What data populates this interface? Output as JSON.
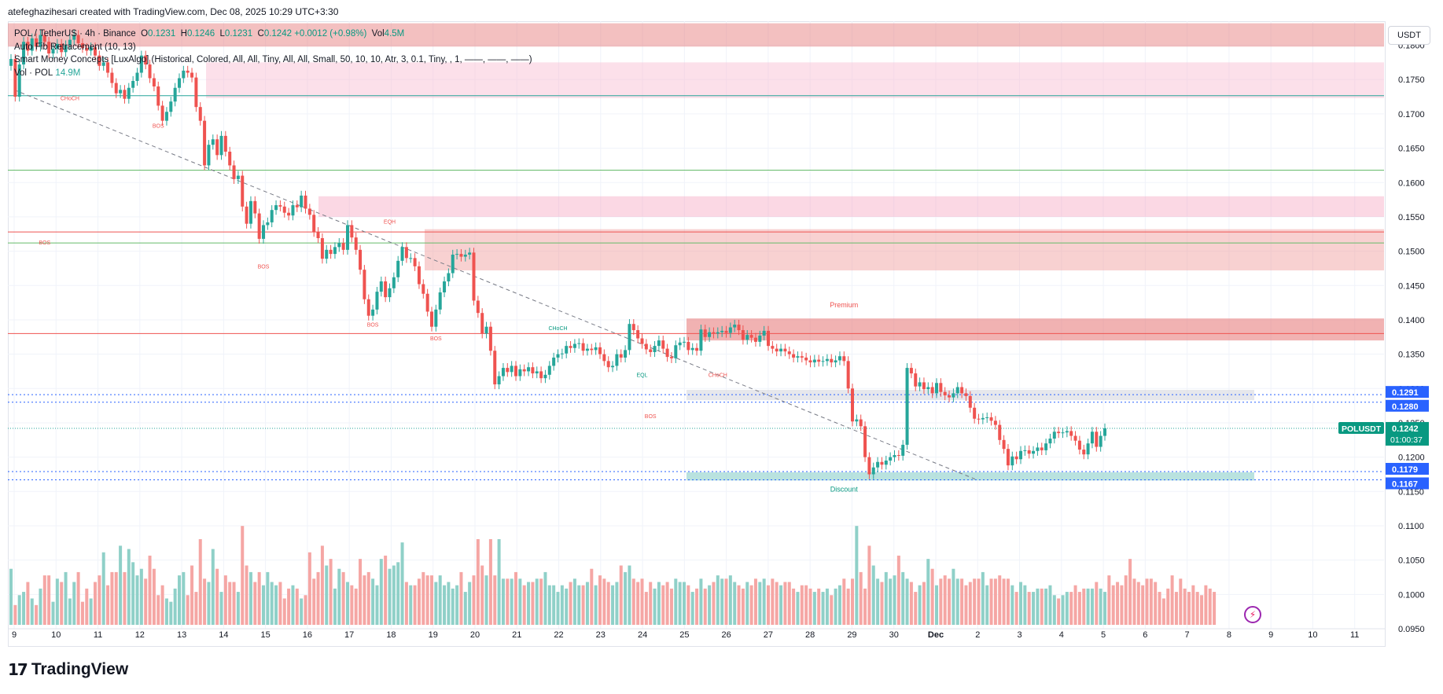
{
  "header": {
    "caption": "atefeghazihesari created with TradingView.com, Dec 08, 2025 10:29 UTC+3:30"
  },
  "legend": {
    "symbol": "POL / TetherUS · 4h · Binance",
    "o_label": "O",
    "o_value": "0.1231",
    "h_label": "H",
    "h_value": "0.1246",
    "l_label": "L",
    "l_value": "0.1231",
    "c_label": "C",
    "c_value": "0.1242",
    "change": "+0.0012 (+0.98%)",
    "vol_label": "Vol",
    "vol_value": "4.5M",
    "indicator_fib": "Auto Fib Retracement (10, 13)",
    "indicator_smc": "Smart Money Concepts [LuxAlgo] (Historical, Colored, All, All, Tiny, All, All, Small, 50, 10, 10, Atr, 3, 0.1, Tiny, , 1, ——, ——, ——)",
    "vol_row_label": "Vol · POL",
    "vol_row_value": "14.9M"
  },
  "currency_button": "USDT",
  "branding": {
    "logo_mark": "17",
    "logo_text": "TradingView"
  },
  "colors": {
    "up": "#26a69a",
    "down": "#ef5350",
    "up_vol": "#8fd0c8",
    "down_vol": "#f5a6a4",
    "premium_zone": "#f7c1c4",
    "discount_zone": "#b2dfdb",
    "blue_line": "#2962ff",
    "badge": "#089981"
  },
  "chart_data": {
    "type": "candlestick",
    "symbol": "POLUSDT",
    "timeframe": "4h",
    "ylim": [
      0.095,
      0.1835
    ],
    "y_ticks": [
      "0.1800",
      "0.1750",
      "0.1700",
      "0.1650",
      "0.1600",
      "0.1550",
      "0.1500",
      "0.1450",
      "0.1400",
      "0.1350",
      "0.1300",
      "0.1250",
      "0.1200",
      "0.1150",
      "0.1100",
      "0.1050",
      "0.1000",
      "0.0950"
    ],
    "x_labels": [
      "9",
      "10",
      "11",
      "12",
      "13",
      "14",
      "15",
      "16",
      "17",
      "18",
      "19",
      "20",
      "21",
      "22",
      "23",
      "24",
      "25",
      "26",
      "27",
      "28",
      "29",
      "30",
      "Dec",
      "2",
      "3",
      "4",
      "5",
      "6",
      "7",
      "8",
      "9",
      "10",
      "11"
    ],
    "num_slots": 306,
    "closes": [
      0.178,
      0.1725,
      0.1772,
      0.1805,
      0.1792,
      0.181,
      0.1798,
      0.1815,
      0.1805,
      0.1788,
      0.1795,
      0.1802,
      0.179,
      0.18,
      0.1808,
      0.1815,
      0.1803,
      0.1796,
      0.1792,
      0.1797,
      0.1785,
      0.177,
      0.1775,
      0.176,
      0.1745,
      0.173,
      0.1735,
      0.1722,
      0.1738,
      0.1748,
      0.176,
      0.1785,
      0.1772,
      0.1752,
      0.174,
      0.1712,
      0.169,
      0.1703,
      0.1718,
      0.1738,
      0.1752,
      0.1763,
      0.176,
      0.1753,
      0.171,
      0.169,
      0.1625,
      0.1655,
      0.1663,
      0.164,
      0.1668,
      0.1645,
      0.1625,
      0.1605,
      0.161,
      0.1565,
      0.154,
      0.1573,
      0.1555,
      0.1518,
      0.1538,
      0.1542,
      0.156,
      0.1567,
      0.1565,
      0.1556,
      0.1552,
      0.1567,
      0.1564,
      0.1581,
      0.1562,
      0.1553,
      0.1528,
      0.1519,
      0.1489,
      0.1502,
      0.1496,
      0.1506,
      0.1512,
      0.1502,
      0.1538,
      0.152,
      0.1502,
      0.1473,
      0.143,
      0.1406,
      0.1415,
      0.1441,
      0.1456,
      0.1433,
      0.1446,
      0.1462,
      0.1486,
      0.1506,
      0.149,
      0.149,
      0.1478,
      0.1452,
      0.1438,
      0.1412,
      0.139,
      0.1415,
      0.144,
      0.1456,
      0.1468,
      0.1495,
      0.1496,
      0.1492,
      0.1495,
      0.1498,
      0.1428,
      0.141,
      0.138,
      0.139,
      0.1355,
      0.1306,
      0.1318,
      0.133,
      0.1324,
      0.1333,
      0.1318,
      0.1328,
      0.1325,
      0.1331,
      0.1322,
      0.1325,
      0.1315,
      0.132,
      0.1333,
      0.1345,
      0.135,
      0.1351,
      0.1362,
      0.1359,
      0.1365,
      0.1366,
      0.1355,
      0.1358,
      0.1356,
      0.136,
      0.135,
      0.134,
      0.1331,
      0.1333,
      0.135,
      0.1345,
      0.1356,
      0.1394,
      0.1385,
      0.1373,
      0.1365,
      0.1357,
      0.1353,
      0.1362,
      0.137,
      0.1358,
      0.1346,
      0.1344,
      0.1363,
      0.1367,
      0.1368,
      0.1356,
      0.1359,
      0.1355,
      0.1386,
      0.1375,
      0.1382,
      0.138,
      0.1382,
      0.1384,
      0.1381,
      0.1389,
      0.1393,
      0.1385,
      0.1371,
      0.1378,
      0.1374,
      0.1368,
      0.1377,
      0.1384,
      0.1362,
      0.1358,
      0.1354,
      0.1358,
      0.1354,
      0.135,
      0.1345,
      0.1347,
      0.1345,
      0.1341,
      0.1338,
      0.1342,
      0.1339,
      0.134,
      0.1343,
      0.1338,
      0.1341,
      0.1347,
      0.134,
      0.13,
      0.1252,
      0.1255,
      0.1245,
      0.12,
      0.1175,
      0.1185,
      0.1193,
      0.1189,
      0.1195,
      0.12,
      0.1203,
      0.1202,
      0.1218,
      0.133,
      0.1322,
      0.1303,
      0.1309,
      0.1299,
      0.1302,
      0.1293,
      0.1308,
      0.1295,
      0.129,
      0.1287,
      0.1293,
      0.1302,
      0.1293,
      0.1289,
      0.1272,
      0.1256,
      0.1255,
      0.1257,
      0.1258,
      0.1253,
      0.1247,
      0.1225,
      0.1212,
      0.1188,
      0.1201,
      0.1197,
      0.1209,
      0.121,
      0.1205,
      0.1209,
      0.1214,
      0.121,
      0.122,
      0.1227,
      0.1237,
      0.1235,
      0.1236,
      0.1238,
      0.1231,
      0.1224,
      0.1211,
      0.1204,
      0.122,
      0.1237,
      0.1215,
      0.1231,
      0.1242
    ],
    "volumes": [
      1.7,
      0.6,
      0.9,
      1.0,
      1.3,
      0.8,
      0.6,
      1.1,
      1.5,
      1.5,
      0.7,
      1.4,
      1.3,
      1.6,
      0.8,
      1.3,
      1.6,
      0.7,
      1.1,
      0.8,
      1.3,
      1.5,
      2.2,
      1.2,
      1.6,
      1.6,
      2.4,
      1.6,
      2.3,
      1.9,
      1.5,
      1.7,
      1.4,
      2.1,
      1.7,
      0.9,
      1.2,
      0.8,
      0.7,
      1.1,
      1.5,
      1.6,
      0.9,
      1.8,
      1.0,
      2.6,
      1.4,
      1.3,
      2.3,
      1.7,
      1.0,
      1.5,
      1.3,
      1.3,
      1.0,
      3.0,
      1.8,
      1.6,
      1.3,
      1.6,
      1.2,
      1.6,
      1.3,
      1.2,
      1.3,
      0.8,
      1.1,
      1.2,
      1.1,
      0.8,
      0.9,
      2.2,
      1.4,
      1.6,
      2.4,
      1.8,
      2.0,
      1.1,
      1.7,
      1.6,
      1.3,
      1.2,
      1.1,
      2.0,
      1.5,
      1.6,
      1.4,
      1.2,
      2.0,
      2.1,
      1.7,
      1.8,
      1.9,
      2.5,
      1.3,
      1.2,
      1.2,
      1.4,
      1.6,
      1.5,
      1.5,
      1.3,
      1.5,
      1.2,
      1.3,
      1.1,
      1.2,
      1.6,
      1.0,
      1.3,
      1.5,
      2.6,
      1.8,
      1.5,
      2.6,
      1.5,
      2.6,
      1.4,
      1.4,
      1.4,
      1.6,
      1.4,
      1.2,
      1.3,
      1.3,
      1.4,
      1.4,
      1.6,
      1.2,
      1.2,
      1.0,
      1.2,
      1.1,
      1.3,
      1.4,
      1.2,
      1.2,
      1.3,
      1.7,
      1.2,
      1.5,
      1.4,
      1.3,
      1.2,
      1.3,
      1.8,
      1.6,
      1.8,
      1.4,
      1.3,
      1.4,
      1.0,
      1.3,
      1.1,
      1.3,
      1.2,
      1.3,
      1.1,
      1.4,
      1.3,
      1.3,
      1.2,
      1.0,
      1.1,
      1.4,
      1.1,
      1.2,
      1.3,
      1.5,
      1.4,
      1.4,
      1.5,
      1.3,
      1.2,
      1.1,
      1.3,
      1.2,
      1.4,
      1.3,
      1.4,
      1.2,
      1.4,
      1.3,
      1.2,
      1.3,
      1.3,
      1.1,
      1.0,
      1.2,
      1.2,
      1.1,
      1.0,
      1.1,
      1.0,
      1.1,
      0.9,
      1.1,
      1.2,
      1.4,
      1.1,
      1.4,
      3.0,
      1.6,
      1.1,
      2.4,
      1.8,
      1.4,
      1.3,
      1.6,
      1.4,
      1.5,
      2.1,
      1.6,
      1.4,
      1.3,
      1.0,
      1.2,
      1.3,
      2.0,
      1.7,
      1.2,
      1.4,
      1.5,
      1.4,
      1.7,
      1.4,
      1.4,
      1.2,
      1.3,
      1.4,
      1.4,
      1.6,
      1.2,
      1.4,
      1.4,
      1.5,
      1.4,
      1.4,
      1.2,
      1.0,
      1.3,
      1.2,
      1.0,
      1.0,
      1.1,
      1.1,
      1.1,
      1.2,
      0.9,
      0.8,
      0.9,
      1.0,
      1.0,
      1.2,
      1.0,
      1.1,
      1.1,
      1.1,
      1.3,
      1.1,
      1.0,
      1.5,
      1.2,
      1.3,
      1.2,
      1.5,
      2.0,
      1.4,
      1.3,
      1.2,
      1.4,
      1.4,
      1.3,
      1.0,
      0.8,
      1.1,
      1.5,
      1.0,
      1.4,
      1.1,
      1.0,
      1.2,
      1.0,
      0.9,
      1.2,
      1.1,
      1.0
    ],
    "price_lines": [
      {
        "label": "0.1291",
        "value": 0.1291
      },
      {
        "label": "0.1280",
        "value": 0.128
      },
      {
        "label": "0.1179",
        "value": 0.1179
      },
      {
        "label": "0.1167",
        "value": 0.1167
      }
    ],
    "last_price": {
      "symbol": "POLUSDT",
      "value": 0.1242,
      "label": "0.1242",
      "countdown": "01:00:37"
    },
    "annotations": [
      {
        "text": "CHoCH",
        "x_slot": 14,
        "y": 0.172,
        "color": "#ef5350"
      },
      {
        "text": "BOS",
        "x_slot": 35,
        "y": 0.168,
        "color": "#ef5350"
      },
      {
        "text": "BOS",
        "x_slot": 8,
        "y": 0.151,
        "color": "#ef5350"
      },
      {
        "text": "BOS",
        "x_slot": 60,
        "y": 0.1475,
        "color": "#ef5350"
      },
      {
        "text": "EQH",
        "x_slot": 90,
        "y": 0.154,
        "color": "#ef5350"
      },
      {
        "text": "BOS",
        "x_slot": 86,
        "y": 0.139,
        "color": "#ef5350"
      },
      {
        "text": "BOS",
        "x_slot": 101,
        "y": 0.137,
        "color": "#ef5350"
      },
      {
        "text": "CHoCH",
        "x_slot": 130,
        "y": 0.1385,
        "color": "#089981"
      },
      {
        "text": "EQL",
        "x_slot": 150,
        "y": 0.1317,
        "color": "#089981"
      },
      {
        "text": "CHoCH",
        "x_slot": 168,
        "y": 0.1317,
        "color": "#ef5350"
      },
      {
        "text": "BOS",
        "x_slot": 152,
        "y": 0.1257,
        "color": "#ef5350"
      },
      {
        "text": "Premium",
        "x_slot": 198,
        "y": 0.1418,
        "color": "#ef5350"
      },
      {
        "text": "Discount",
        "x_slot": 198,
        "y": 0.115,
        "color": "#089981"
      }
    ]
  }
}
